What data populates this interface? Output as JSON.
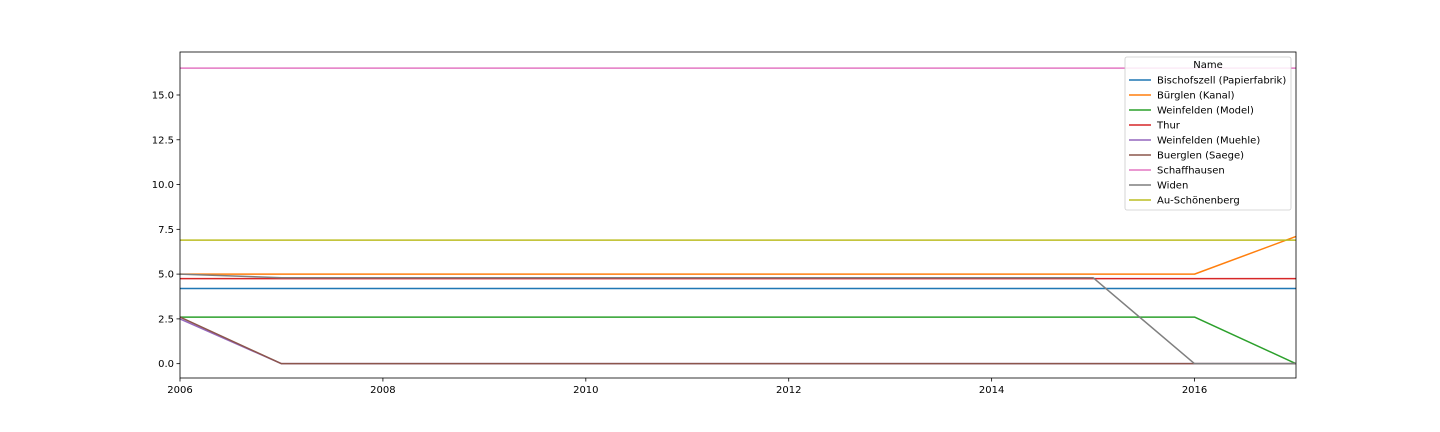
{
  "chart_data": {
    "type": "line",
    "title": "",
    "xlabel": "",
    "ylabel": "",
    "xlim": [
      2006,
      2017
    ],
    "ylim": [
      -0.8,
      17.4
    ],
    "x": [
      2006,
      2007,
      2008,
      2009,
      2010,
      2011,
      2012,
      2013,
      2014,
      2015,
      2016,
      2017
    ],
    "x_ticks": [
      2006,
      2008,
      2010,
      2012,
      2014,
      2016
    ],
    "x_tick_labels": [
      "2006",
      "2008",
      "2010",
      "2012",
      "2014",
      "2016"
    ],
    "y_ticks": [
      0,
      2.5,
      5,
      7.5,
      10,
      12.5,
      15
    ],
    "y_tick_labels": [
      "0.0",
      "2.5",
      "5.0",
      "7.5",
      "10.0",
      "12.5",
      "15.0"
    ],
    "grid": false,
    "legend": {
      "title": "Name",
      "placement": "top-right"
    },
    "series": [
      {
        "name": "Bischofszell (Papierfabrik)",
        "color": "#1f77b4",
        "values": [
          4.2,
          4.2,
          4.2,
          4.2,
          4.2,
          4.2,
          4.2,
          4.2,
          4.2,
          4.2,
          4.2,
          4.2
        ]
      },
      {
        "name": "Bürglen (Kanal)",
        "color": "#ff7f0e",
        "values": [
          5.0,
          5.0,
          5.0,
          5.0,
          5.0,
          5.0,
          5.0,
          5.0,
          5.0,
          5.0,
          5.0,
          7.1
        ]
      },
      {
        "name": "Weinfelden (Model)",
        "color": "#2ca02c",
        "values": [
          2.6,
          2.6,
          2.6,
          2.6,
          2.6,
          2.6,
          2.6,
          2.6,
          2.6,
          2.6,
          2.6,
          0.0
        ]
      },
      {
        "name": "Thur",
        "color": "#d62728",
        "values": [
          4.75,
          4.75,
          4.75,
          4.75,
          4.75,
          4.75,
          4.75,
          4.75,
          4.75,
          4.75,
          4.75,
          4.75
        ]
      },
      {
        "name": "Weinfelden (Muehle)",
        "color": "#9467bd",
        "values": [
          2.5,
          0.0,
          0.0,
          0.0,
          0.0,
          0.0,
          0.0,
          0.0,
          0.0,
          0.0,
          0.0,
          0.0
        ]
      },
      {
        "name": "Buerglen (Saege)",
        "color": "#8c564b",
        "values": [
          2.6,
          0.0,
          0.0,
          0.0,
          0.0,
          0.0,
          0.0,
          0.0,
          0.0,
          0.0,
          0.0,
          0.0
        ]
      },
      {
        "name": "Schaffhausen",
        "color": "#e377c2",
        "values": [
          16.5,
          16.5,
          16.5,
          16.5,
          16.5,
          16.5,
          16.5,
          16.5,
          16.5,
          16.5,
          16.5,
          16.5
        ]
      },
      {
        "name": "Widen",
        "color": "#7f7f7f",
        "values": [
          5.0,
          4.8,
          4.8,
          4.8,
          4.8,
          4.8,
          4.8,
          4.8,
          4.8,
          4.8,
          0.0,
          0.0
        ]
      },
      {
        "name": "Au-Schönenberg",
        "color": "#bcbd22",
        "values": [
          6.9,
          6.9,
          6.9,
          6.9,
          6.9,
          6.9,
          6.9,
          6.9,
          6.9,
          6.9,
          6.9,
          6.9
        ]
      }
    ]
  }
}
